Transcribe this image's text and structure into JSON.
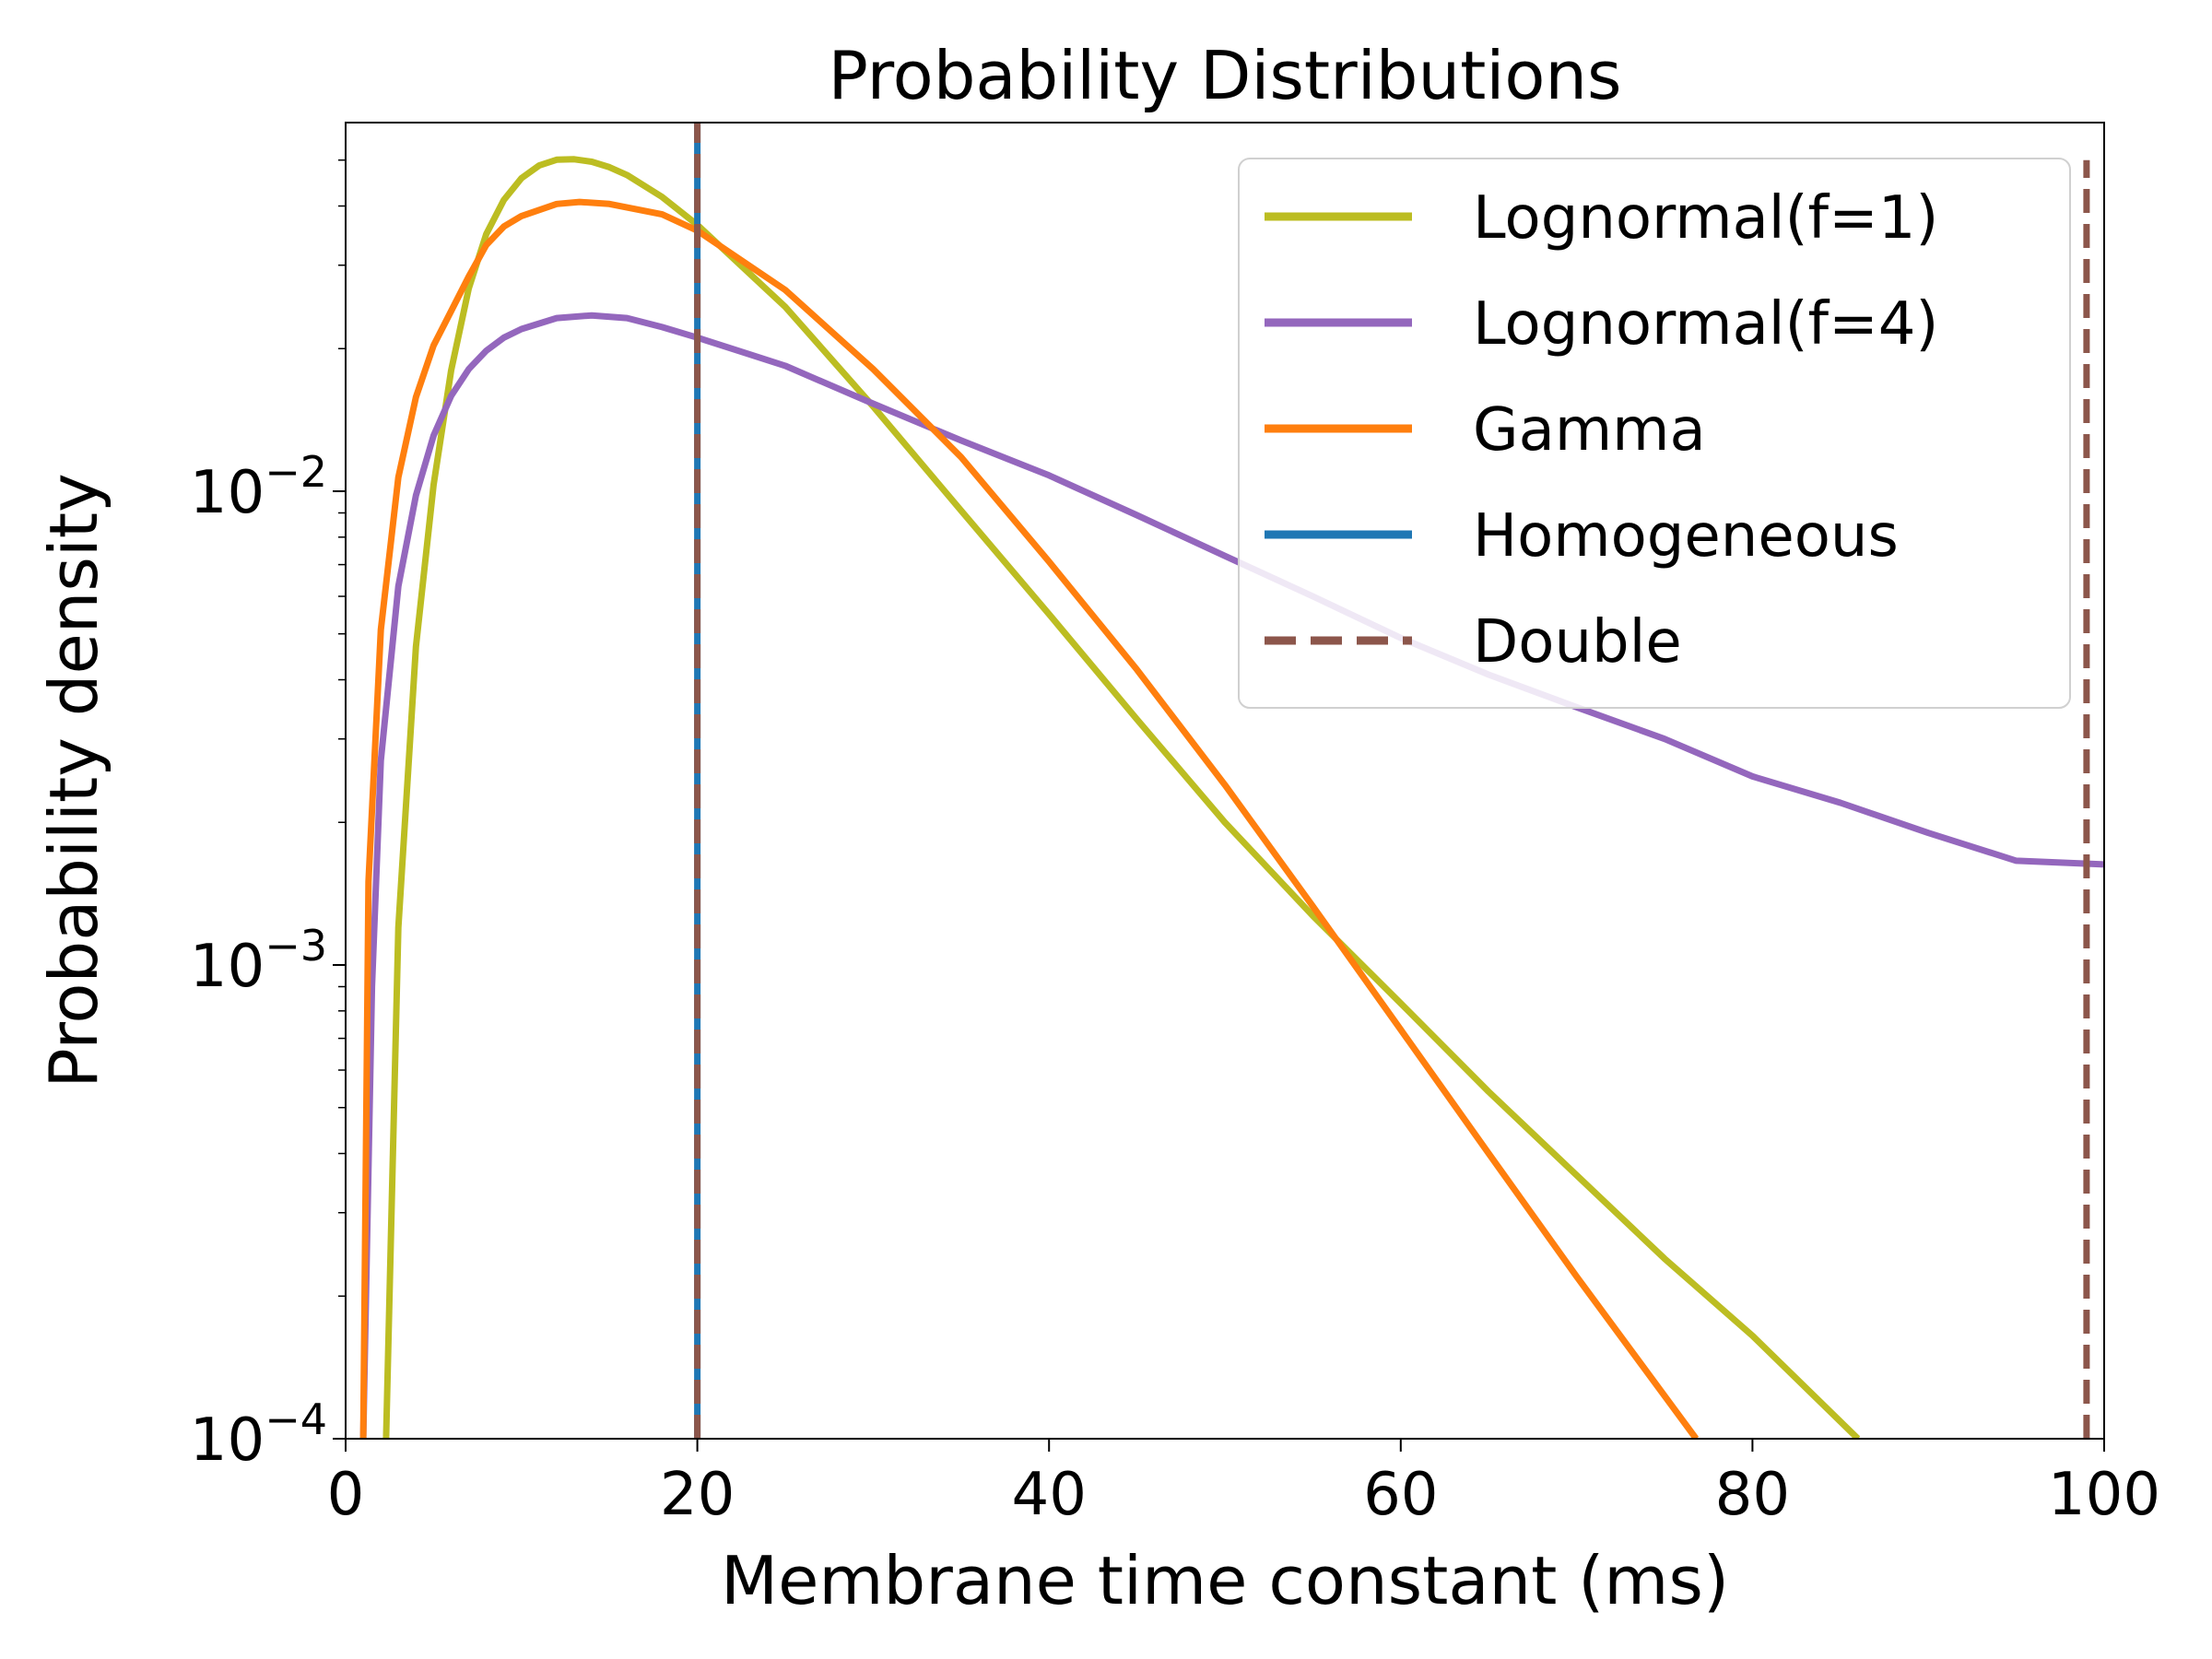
{
  "chart_data": {
    "type": "line",
    "title": "Probability Distributions",
    "xlabel": "Membrane time constant (ms)",
    "ylabel": "Probability density",
    "xlim": [
      0,
      100
    ],
    "ylim": [
      0.0001,
      0.06
    ],
    "yscale": "log",
    "grid": false,
    "legend_position": "top-right",
    "x_ticks": [
      0,
      20,
      40,
      60,
      80,
      100
    ],
    "x_tick_labels": [
      "0",
      "20",
      "40",
      "60",
      "80",
      "100"
    ],
    "y_ticks": [
      0.0001,
      0.001,
      0.01
    ],
    "y_tick_labels": [
      {
        "base": "10",
        "exp": "−4"
      },
      {
        "base": "10",
        "exp": "−3"
      },
      {
        "base": "10",
        "exp": "−2"
      }
    ],
    "series": [
      {
        "name": "Lognormal(f=1)",
        "color": "#bcbd22",
        "style": "solid",
        "x": [
          2.3,
          3,
          4,
          5,
          6,
          7,
          8,
          9,
          10,
          11,
          12,
          13,
          14,
          15,
          16,
          18,
          20,
          25,
          30,
          35,
          40,
          45,
          50,
          55,
          60,
          65,
          70,
          75,
          80,
          86
        ],
        "y": [
          0.0001,
          0.0012,
          0.0047,
          0.0103,
          0.018,
          0.0268,
          0.0349,
          0.0412,
          0.0458,
          0.0487,
          0.0501,
          0.0502,
          0.0496,
          0.0483,
          0.0465,
          0.0418,
          0.0365,
          0.0245,
          0.0151,
          0.0091,
          0.0055,
          0.0033,
          0.002,
          0.00127,
          0.00083,
          0.00054,
          0.00036,
          0.00024,
          0.000165,
          0.0001
        ]
      },
      {
        "name": "Lognormal(f=4)",
        "color": "#9467bd",
        "style": "solid",
        "x": [
          1.0,
          1.5,
          2,
          3,
          4,
          5,
          6,
          7,
          8,
          9,
          10,
          12,
          14,
          16,
          18,
          20,
          25,
          30,
          35,
          40,
          45,
          50,
          55,
          60,
          65,
          70,
          75,
          80,
          85,
          90,
          95,
          100
        ],
        "y": [
          0.0001,
          0.0009,
          0.0027,
          0.0063,
          0.0098,
          0.0131,
          0.0159,
          0.0181,
          0.0198,
          0.0211,
          0.022,
          0.0232,
          0.0235,
          0.0232,
          0.0222,
          0.0211,
          0.0184,
          0.0153,
          0.0128,
          0.0108,
          0.0089,
          0.0073,
          0.006,
          0.0049,
          0.0041,
          0.0035,
          0.003,
          0.0025,
          0.0022,
          0.0019,
          0.00166,
          0.00163
        ]
      },
      {
        "name": "Gamma",
        "color": "#ff7f0e",
        "style": "solid",
        "x": [
          1.0,
          1.3,
          2,
          3,
          4,
          5,
          6,
          7,
          8,
          9,
          10,
          12,
          13.3,
          15,
          18,
          20,
          25,
          30,
          35,
          40,
          45,
          50,
          55,
          60,
          65,
          70,
          76.8
        ],
        "y": [
          0.0001,
          0.0015,
          0.0051,
          0.0107,
          0.0158,
          0.0203,
          0.024,
          0.0284,
          0.0331,
          0.0362,
          0.0381,
          0.0404,
          0.0408,
          0.0404,
          0.0384,
          0.0355,
          0.0266,
          0.0181,
          0.0118,
          0.0071,
          0.0042,
          0.0024,
          0.00133,
          0.00073,
          0.0004,
          0.00022,
          0.0001
        ]
      },
      {
        "name": "Homogeneous",
        "color": "#1f77b4",
        "style": "solid",
        "x": [
          20,
          20
        ],
        "y": [
          0.0001,
          0.06
        ]
      },
      {
        "name": "Double",
        "color": "#8c564b",
        "style": "dashed",
        "x": [
          20,
          20,
          99,
          99
        ],
        "y": [
          0.0001,
          0.06,
          0.0001,
          0.05
        ],
        "segments": [
          [
            0,
            1
          ],
          [
            2,
            3
          ]
        ]
      }
    ]
  }
}
